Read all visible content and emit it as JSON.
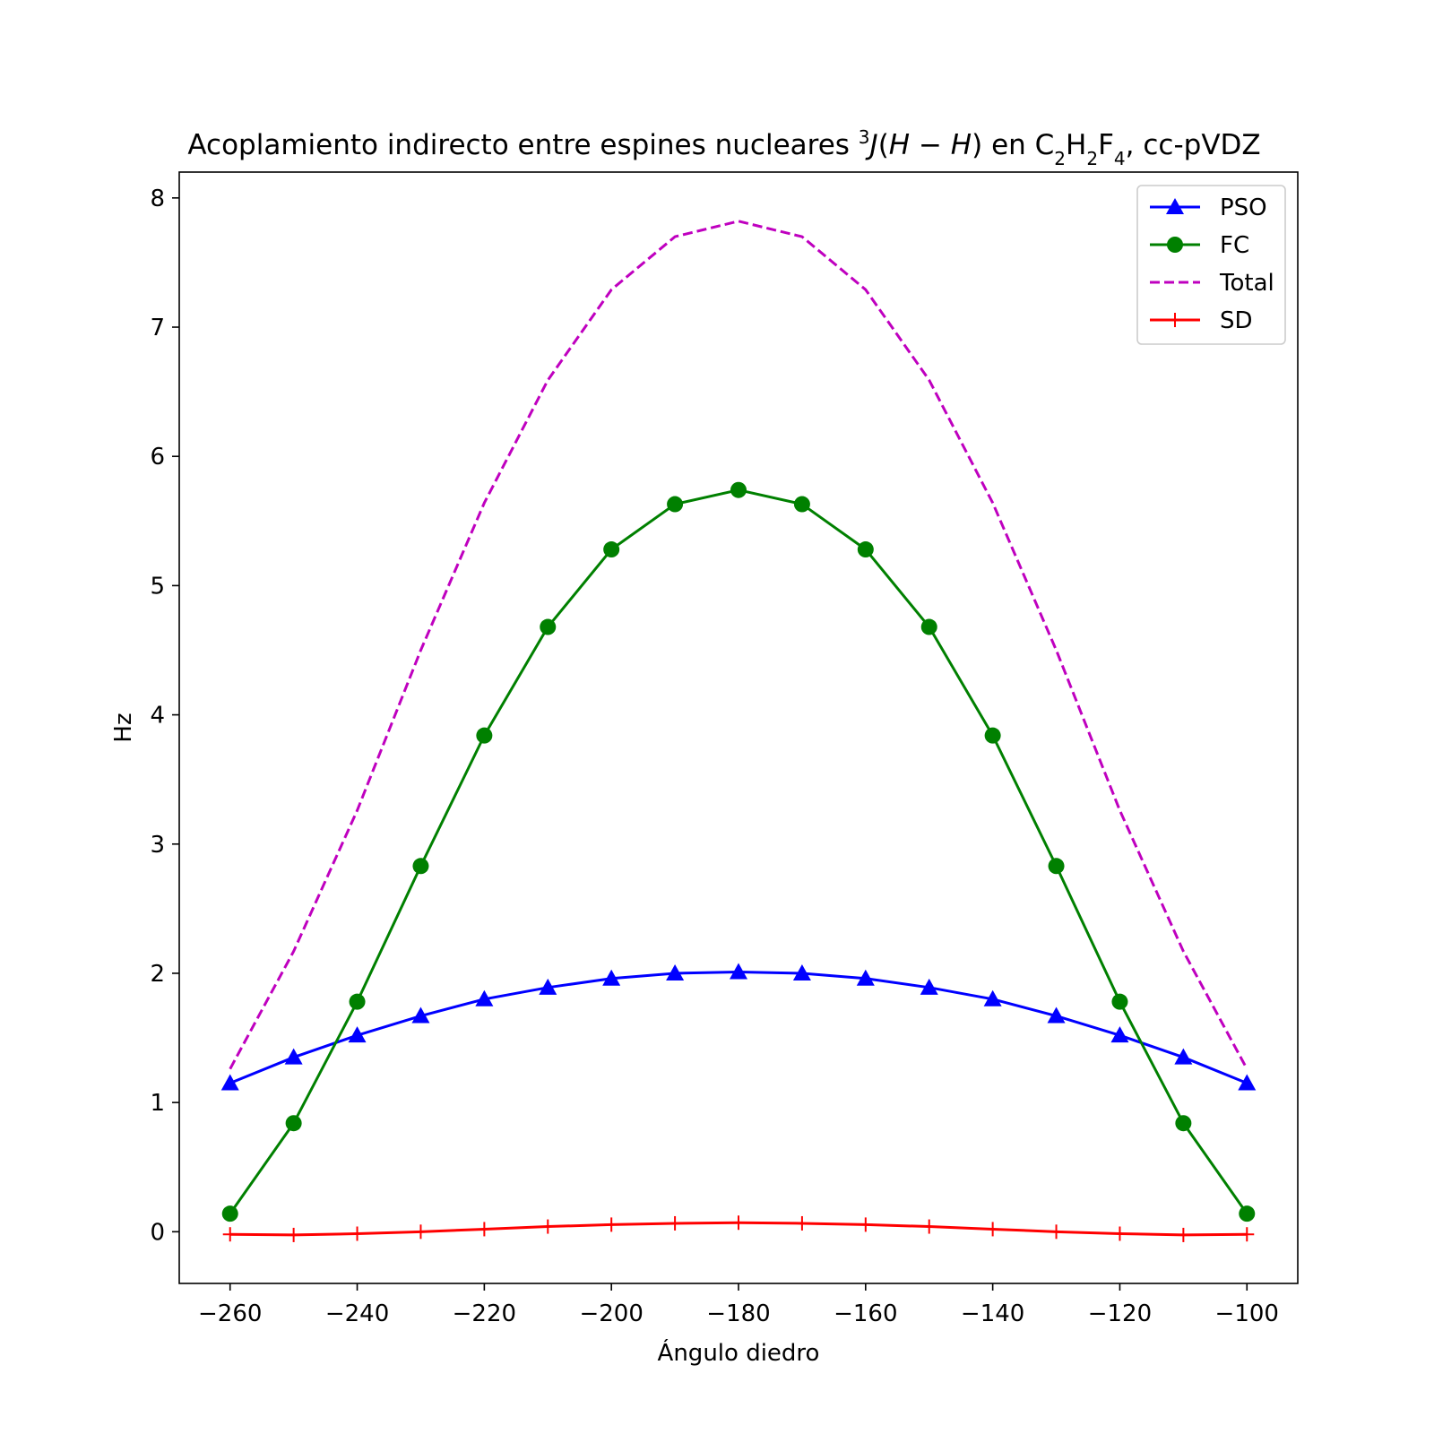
{
  "chart_data": {
    "type": "line",
    "title": {
      "prefix": "Acoplamiento indirecto entre espines nucleares ",
      "sup": "3",
      "j": "J",
      "paren_open": "(",
      "hh": "H − H",
      "paren_close": ")",
      "mid": " en C",
      "sub1": "2",
      "h": "H",
      "sub2": "2",
      "f": "F",
      "sub3": "4",
      "suffix": ", cc-pVDZ"
    },
    "xlabel": "Ángulo diedro",
    "ylabel": "Hz",
    "xlim": [
      -268,
      -92
    ],
    "ylim": [
      -0.4,
      8.2
    ],
    "xticks": [
      -260,
      -240,
      -220,
      -200,
      -180,
      -160,
      -140,
      -120,
      -100
    ],
    "xtick_labels": [
      "−260",
      "−240",
      "−220",
      "−200",
      "−180",
      "−160",
      "−140",
      "−120",
      "−100"
    ],
    "yticks": [
      0,
      1,
      2,
      3,
      4,
      5,
      6,
      7,
      8
    ],
    "ytick_labels": [
      "0",
      "1",
      "2",
      "3",
      "4",
      "5",
      "6",
      "7",
      "8"
    ],
    "grid": false,
    "legend_position": "top-right",
    "x": [
      -260,
      -250,
      -240,
      -230,
      -220,
      -210,
      -200,
      -190,
      -180,
      -170,
      -160,
      -150,
      -140,
      -130,
      -120,
      -110,
      -100
    ],
    "series": [
      {
        "name": "PSO",
        "color": "#0000ff",
        "style": "solid",
        "marker": "triangle",
        "values": [
          1.15,
          1.35,
          1.52,
          1.67,
          1.8,
          1.89,
          1.96,
          2.0,
          2.01,
          2.0,
          1.96,
          1.89,
          1.8,
          1.67,
          1.52,
          1.35,
          1.15
        ]
      },
      {
        "name": "FC",
        "color": "#008000",
        "style": "solid",
        "marker": "circle",
        "values": [
          0.14,
          0.84,
          1.78,
          2.83,
          3.84,
          4.68,
          5.28,
          5.63,
          5.74,
          5.63,
          5.28,
          4.68,
          3.84,
          2.83,
          1.78,
          0.84,
          0.14
        ]
      },
      {
        "name": "Total",
        "color": "#bf00bf",
        "style": "dashed",
        "marker": "none",
        "values": [
          1.26,
          2.17,
          3.26,
          4.5,
          5.64,
          6.59,
          7.29,
          7.7,
          7.82,
          7.7,
          7.29,
          6.59,
          5.64,
          4.5,
          3.26,
          2.17,
          1.26
        ]
      },
      {
        "name": "SD",
        "color": "#ff0000",
        "style": "solid",
        "marker": "plus",
        "values": [
          -0.02,
          -0.025,
          -0.015,
          0.0,
          0.02,
          0.04,
          0.055,
          0.065,
          0.07,
          0.065,
          0.055,
          0.04,
          0.02,
          0.0,
          -0.015,
          -0.025,
          -0.02
        ]
      }
    ]
  }
}
